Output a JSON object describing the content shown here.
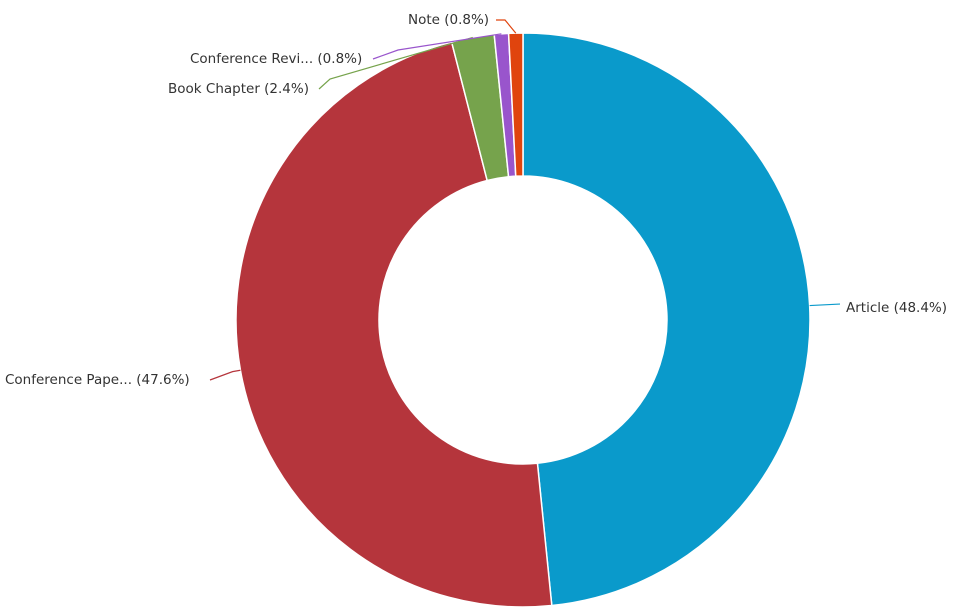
{
  "chart_data": {
    "type": "pie",
    "donut": true,
    "slices": [
      {
        "label": "Article (48.4%)",
        "value": 48.4,
        "color": "#0a9acb"
      },
      {
        "label": "Conference Pape... (47.6%)",
        "value": 47.6,
        "color": "#b5353c"
      },
      {
        "label": "Book Chapter (2.4%)",
        "value": 2.4,
        "color": "#76a34c"
      },
      {
        "label": "Conference Revi... (0.8%)",
        "value": 0.8,
        "color": "#9955cc"
      },
      {
        "label": "Note (0.8%)",
        "value": 0.8,
        "color": "#e0440e"
      }
    ]
  }
}
